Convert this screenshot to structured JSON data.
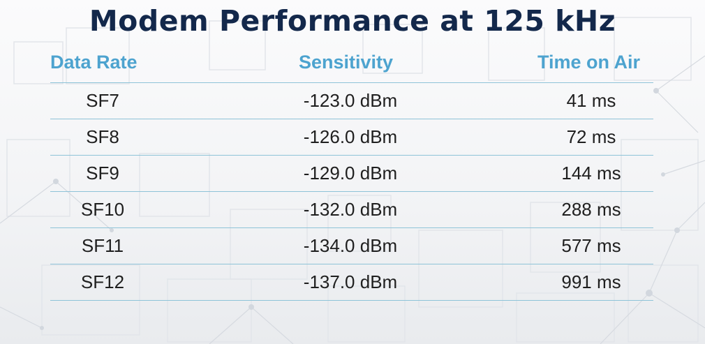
{
  "slide": {
    "title": "Modem Performance at 125 kHz"
  },
  "table": {
    "headers": {
      "data_rate": "Data Rate",
      "sensitivity": "Sensitivity",
      "time_on_air": "Time on Air"
    },
    "rows": [
      {
        "data_rate": "SF7",
        "sensitivity": "-123.0 dBm",
        "time_on_air": "41 ms"
      },
      {
        "data_rate": "SF8",
        "sensitivity": "-126.0 dBm",
        "time_on_air": "72 ms"
      },
      {
        "data_rate": "SF9",
        "sensitivity": "-129.0 dBm",
        "time_on_air": "144 ms"
      },
      {
        "data_rate": "SF10",
        "sensitivity": "-132.0 dBm",
        "time_on_air": "288 ms"
      },
      {
        "data_rate": "SF11",
        "sensitivity": "-134.0 dBm",
        "time_on_air": "577 ms"
      },
      {
        "data_rate": "SF12",
        "sensitivity": "-137.0 dBm",
        "time_on_air": "991 ms"
      }
    ]
  },
  "colors": {
    "title": "#13284b",
    "header": "#4da3cf",
    "rule": "#8ec3d8",
    "cell_text": "#1f1f1f"
  }
}
